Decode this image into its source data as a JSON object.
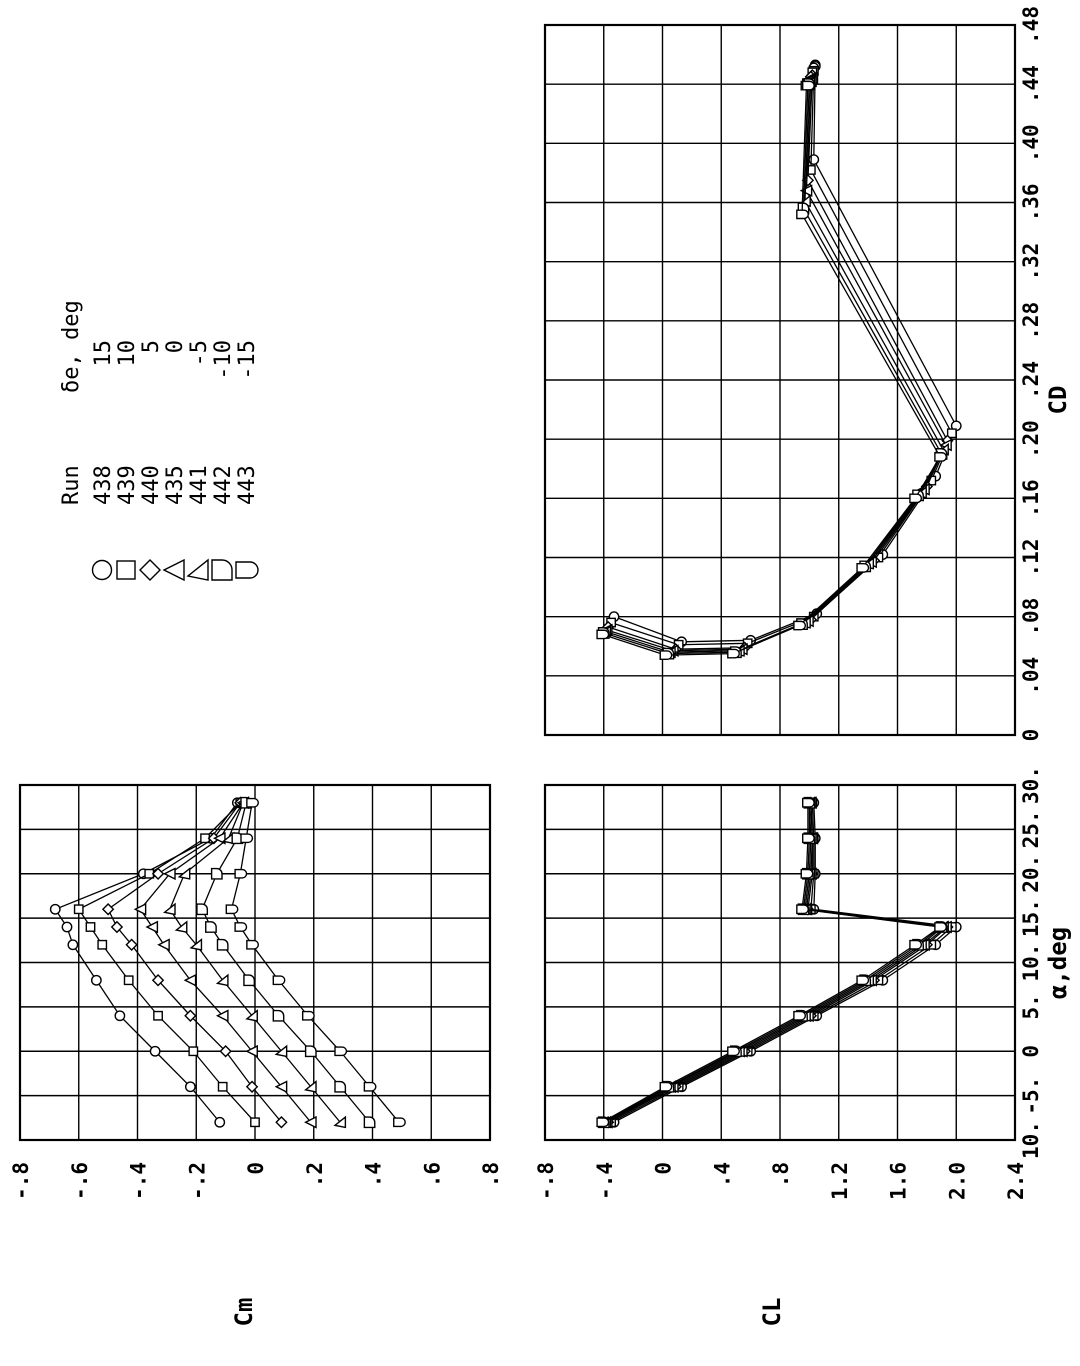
{
  "chart_data": [
    {
      "id": "cm",
      "type": "line",
      "xlabel": "α,deg",
      "ylabel": "Cm",
      "xlim": [
        -10,
        30
      ],
      "ylim": [
        -0.8,
        0.8
      ],
      "xticks": [
        "10.",
        "-5.",
        "0",
        "5.",
        "10.",
        "15.",
        "20.",
        "25.",
        "30."
      ],
      "yticks": [
        "-.8",
        "-.6",
        "-.4",
        "-.2",
        "0",
        ".2",
        ".4",
        ".6",
        ".8"
      ],
      "x": [
        -8,
        -4,
        0,
        4,
        8,
        12,
        14,
        16,
        20,
        24,
        28
      ],
      "series": [
        {
          "marker": "circle",
          "values": [
            -0.12,
            -0.22,
            -0.34,
            -0.46,
            -0.54,
            -0.62,
            -0.64,
            -0.68,
            -0.38,
            -0.15,
            -0.06
          ]
        },
        {
          "marker": "square",
          "values": [
            0.0,
            -0.11,
            -0.21,
            -0.33,
            -0.43,
            -0.52,
            -0.56,
            -0.6,
            -0.36,
            -0.17,
            -0.05
          ]
        },
        {
          "marker": "diamond",
          "values": [
            0.09,
            -0.01,
            -0.1,
            -0.22,
            -0.33,
            -0.42,
            -0.47,
            -0.5,
            -0.33,
            -0.14,
            -0.05
          ]
        },
        {
          "marker": "tri-left",
          "values": [
            0.19,
            0.09,
            -0.01,
            -0.11,
            -0.22,
            -0.31,
            -0.35,
            -0.39,
            -0.29,
            -0.12,
            -0.04
          ]
        },
        {
          "marker": "tri-right",
          "values": [
            0.29,
            0.19,
            0.09,
            -0.01,
            -0.11,
            -0.2,
            -0.25,
            -0.29,
            -0.24,
            -0.09,
            -0.04
          ]
        },
        {
          "marker": "d-shape",
          "values": [
            0.39,
            0.29,
            0.19,
            0.08,
            -0.02,
            -0.11,
            -0.15,
            -0.18,
            -0.13,
            -0.06,
            -0.03
          ]
        },
        {
          "marker": "d-square",
          "values": [
            0.49,
            0.39,
            0.29,
            0.18,
            0.08,
            -0.01,
            -0.05,
            -0.08,
            -0.05,
            -0.03,
            -0.01
          ]
        }
      ]
    },
    {
      "id": "cl",
      "type": "line",
      "xlabel": "",
      "ylabel": "CL",
      "xlim": [
        -10,
        30
      ],
      "ylim": [
        -0.8,
        2.4
      ],
      "xticks": [
        "10.",
        "-5.",
        "0",
        "5.",
        "10.",
        "15.",
        "20.",
        "25.",
        "30."
      ],
      "yticks": [
        "-.8",
        "-.4",
        "0",
        ".4",
        ".8",
        "1.2",
        "1.6",
        "2.0",
        "2.4"
      ],
      "x": [
        -8,
        -4,
        0,
        4,
        8,
        12,
        14,
        16,
        20,
        24,
        28
      ],
      "series": [
        {
          "marker": "circle",
          "values": [
            -0.33,
            0.13,
            0.6,
            1.05,
            1.5,
            1.86,
            2.0,
            1.03,
            1.04,
            1.04,
            1.03
          ]
        },
        {
          "marker": "square",
          "values": [
            -0.35,
            0.11,
            0.58,
            1.03,
            1.47,
            1.83,
            1.97,
            1.01,
            1.03,
            1.03,
            1.02
          ]
        },
        {
          "marker": "diamond",
          "values": [
            -0.37,
            0.09,
            0.56,
            1.01,
            1.44,
            1.8,
            1.94,
            0.99,
            1.02,
            1.02,
            1.01
          ]
        },
        {
          "marker": "tri-left",
          "values": [
            -0.38,
            0.07,
            0.54,
            0.99,
            1.42,
            1.78,
            1.93,
            0.98,
            1.01,
            1.02,
            1.01
          ]
        },
        {
          "marker": "tri-right",
          "values": [
            -0.39,
            0.05,
            0.52,
            0.97,
            1.4,
            1.76,
            1.91,
            0.97,
            1.0,
            1.01,
            1.0
          ]
        },
        {
          "marker": "d-shape",
          "values": [
            -0.4,
            0.04,
            0.5,
            0.95,
            1.38,
            1.74,
            1.9,
            0.96,
            0.99,
            1.0,
            1.0
          ]
        },
        {
          "marker": "d-square",
          "values": [
            -0.41,
            0.02,
            0.48,
            0.93,
            1.36,
            1.72,
            1.89,
            0.95,
            0.98,
            0.99,
            0.99
          ]
        }
      ]
    },
    {
      "id": "cd",
      "type": "line",
      "xlabel": "CD",
      "ylabel": "",
      "xlim": [
        0,
        0.48
      ],
      "ylim": [
        -0.8,
        2.4
      ],
      "xticks": [
        "0",
        ".04",
        ".08",
        ".12",
        ".16",
        ".20",
        ".24",
        ".28",
        ".32",
        ".36",
        ".40",
        ".44",
        ".48"
      ],
      "series": [
        {
          "marker": "circle",
          "points": [
            [
              0.08,
              -0.33
            ],
            [
              0.063,
              0.13
            ],
            [
              0.064,
              0.6
            ],
            [
              0.082,
              1.05
            ],
            [
              0.122,
              1.5
            ],
            [
              0.175,
              1.86
            ],
            [
              0.209,
              2.0
            ],
            [
              0.389,
              1.03
            ],
            [
              0.453,
              1.04
            ],
            [
              0.452,
              1.04
            ],
            [
              0.451,
              1.03
            ]
          ]
        },
        {
          "marker": "square",
          "points": [
            [
              0.076,
              -0.35
            ],
            [
              0.061,
              0.11
            ],
            [
              0.062,
              0.58
            ],
            [
              0.08,
              1.03
            ],
            [
              0.12,
              1.47
            ],
            [
              0.172,
              1.83
            ],
            [
              0.204,
              1.97
            ],
            [
              0.382,
              1.01
            ],
            [
              0.449,
              1.03
            ],
            [
              0.449,
              1.03
            ],
            [
              0.448,
              1.02
            ]
          ]
        },
        {
          "marker": "diamond",
          "points": [
            [
              0.073,
              -0.37
            ],
            [
              0.058,
              0.09
            ],
            [
              0.059,
              0.56
            ],
            [
              0.078,
              1.01
            ],
            [
              0.118,
              1.44
            ],
            [
              0.168,
              1.8
            ],
            [
              0.199,
              1.94
            ],
            [
              0.375,
              0.99
            ],
            [
              0.446,
              1.02
            ],
            [
              0.446,
              1.02
            ],
            [
              0.445,
              1.01
            ]
          ]
        },
        {
          "marker": "tri-left",
          "points": [
            [
              0.071,
              -0.38
            ],
            [
              0.057,
              0.07
            ],
            [
              0.058,
              0.54
            ],
            [
              0.077,
              0.99
            ],
            [
              0.117,
              1.42
            ],
            [
              0.166,
              1.78
            ],
            [
              0.196,
              1.93
            ],
            [
              0.368,
              0.98
            ],
            [
              0.444,
              1.01
            ],
            [
              0.444,
              1.02
            ],
            [
              0.443,
              1.01
            ]
          ]
        },
        {
          "marker": "tri-right",
          "points": [
            [
              0.07,
              -0.39
            ],
            [
              0.056,
              0.05
            ],
            [
              0.057,
              0.52
            ],
            [
              0.076,
              0.97
            ],
            [
              0.116,
              1.4
            ],
            [
              0.164,
              1.76
            ],
            [
              0.193,
              1.91
            ],
            [
              0.361,
              0.97
            ],
            [
              0.442,
              1.0
            ],
            [
              0.442,
              1.01
            ],
            [
              0.441,
              1.0
            ]
          ]
        },
        {
          "marker": "d-shape",
          "points": [
            [
              0.069,
              -0.4
            ],
            [
              0.055,
              0.04
            ],
            [
              0.056,
              0.5
            ],
            [
              0.075,
              0.95
            ],
            [
              0.114,
              1.38
            ],
            [
              0.162,
              1.74
            ],
            [
              0.19,
              1.9
            ],
            [
              0.356,
              0.96
            ],
            [
              0.44,
              0.99
            ],
            [
              0.44,
              1.0
            ],
            [
              0.44,
              1.0
            ]
          ]
        },
        {
          "marker": "d-square",
          "points": [
            [
              0.068,
              -0.41
            ],
            [
              0.054,
              0.02
            ],
            [
              0.055,
              0.48
            ],
            [
              0.074,
              0.93
            ],
            [
              0.113,
              1.36
            ],
            [
              0.16,
              1.72
            ],
            [
              0.188,
              1.89
            ],
            [
              0.352,
              0.95
            ],
            [
              0.439,
              0.98
            ],
            [
              0.439,
              0.99
            ],
            [
              0.439,
              0.99
            ]
          ]
        }
      ]
    }
  ],
  "legend": {
    "header_run": "Run",
    "header_de": "δe, deg",
    "rows": [
      {
        "marker": "circle",
        "run": "438",
        "de": "15"
      },
      {
        "marker": "square",
        "run": "439",
        "de": "10"
      },
      {
        "marker": "diamond",
        "run": "440",
        "de": "5"
      },
      {
        "marker": "tri-left",
        "run": "435",
        "de": "0"
      },
      {
        "marker": "tri-right",
        "run": "441",
        "de": "-5"
      },
      {
        "marker": "d-shape",
        "run": "442",
        "de": "-10"
      },
      {
        "marker": "d-square",
        "run": "443",
        "de": "-15"
      }
    ]
  }
}
